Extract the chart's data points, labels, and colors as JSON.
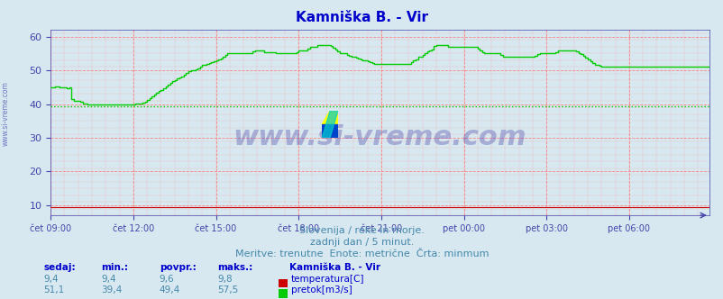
{
  "title": "Kamniška B. - Vir",
  "title_color": "#0000cc",
  "bg_color": "#d8e8f0",
  "plot_bg_color": "#d8e8f0",
  "grid_color": "#ff8080",
  "ylim": [
    7,
    62
  ],
  "yticks": [
    10,
    20,
    30,
    40,
    50,
    60
  ],
  "xlabel_color": "#4444aa",
  "tick_color": "#4444aa",
  "x_labels": [
    "čet 09:00",
    "čet 12:00",
    "čet 15:00",
    "čet 18:00",
    "čet 21:00",
    "pet 00:00",
    "pet 03:00",
    "pet 06:00"
  ],
  "x_positions": [
    0,
    36,
    72,
    108,
    144,
    180,
    216,
    252
  ],
  "total_points": 288,
  "temp_color": "#cc0000",
  "temp_value": 9.4,
  "flow_color": "#00cc00",
  "avg_flow": 39.4,
  "watermark": "www.si-vreme.com",
  "watermark_color": "#4444aa",
  "watermark_alpha": 0.35,
  "subtitle1": "Slovenija / reke in morje.",
  "subtitle2": "zadnji dan / 5 minut.",
  "subtitle3": "Meritve: trenutne  Enote: metrične  Črta: minmum",
  "footer_color": "#4488aa",
  "legend_title": "Kamniška B. - Vir",
  "stat_headers": [
    "sedaj:",
    "min.:",
    "povpr.:",
    "maks.:"
  ],
  "temp_stats": [
    "9,4",
    "9,4",
    "9,6",
    "9,8"
  ],
  "flow_stats": [
    "51,1",
    "39,4",
    "49,4",
    "57,5"
  ],
  "left_margin_label": "www.si-vreme.com",
  "flow_data": [
    45,
    45,
    45.2,
    45.1,
    45,
    44.9,
    45,
    44.8,
    45,
    41,
    41,
    41,
    41,
    40.5,
    40.2,
    40,
    40,
    39.8,
    40,
    40,
    39.9,
    40,
    40,
    40,
    40,
    40,
    40,
    40,
    40,
    40,
    40,
    40,
    40,
    40,
    40,
    40,
    40,
    40.1,
    40,
    40.2,
    40.5,
    41,
    41.5,
    42,
    42.5,
    43,
    43.5,
    44,
    44.5,
    45,
    45.5,
    46,
    46.5,
    47,
    47.5,
    48,
    48,
    48.5,
    49,
    49.5,
    50,
    50,
    50,
    50.5,
    51,
    51.5,
    51.5,
    52,
    52,
    52.5,
    52.5,
    53,
    53,
    53.5,
    54,
    54.5,
    55,
    55,
    55,
    55,
    55,
    55,
    55,
    55,
    55,
    55,
    55,
    55.5,
    56,
    56,
    56,
    56,
    55.5,
    55.5,
    55.5,
    55.5,
    55.5,
    55,
    55,
    55,
    55,
    55,
    55,
    55,
    55,
    55,
    55.5,
    56,
    56,
    56,
    56,
    56.5,
    57,
    57,
    57,
    57.5,
    57.5,
    57.5,
    57.5,
    57.5,
    57.5,
    57,
    56.5,
    56,
    55.5,
    55,
    55,
    55,
    54.5,
    54,
    54,
    54,
    53.5,
    53.5,
    53,
    53,
    53,
    52.5,
    52.5,
    52,
    52,
    52,
    52,
    52,
    52,
    52,
    52,
    52,
    52,
    52,
    52,
    52,
    52,
    52,
    52,
    52,
    53,
    53,
    54,
    54,
    54.5,
    55,
    55.5,
    56,
    56,
    57,
    57.5,
    57.5,
    57.5,
    57.5,
    57.5,
    57,
    57,
    57,
    57,
    57,
    57,
    57,
    57,
    57,
    57,
    57,
    57,
    57,
    56.5,
    56,
    55.5,
    55,
    55,
    55,
    55,
    55,
    55,
    55,
    54.5,
    54,
    54,
    54,
    54,
    54,
    54,
    54,
    54,
    54,
    54,
    54,
    54,
    54,
    54,
    54.5,
    55,
    55,
    55,
    55,
    55,
    55,
    55,
    55,
    55.5,
    56,
    56,
    56,
    56,
    56,
    56,
    56,
    56,
    55.5,
    55,
    54.5,
    54,
    53.5,
    53,
    52.5,
    52,
    51.5,
    51.5,
    51,
    51,
    51,
    51,
    51,
    51,
    51,
    51,
    51,
    51,
    51,
    51,
    51,
    51,
    51,
    51,
    51,
    51,
    51,
    51,
    51,
    51,
    51,
    51,
    51,
    51,
    51,
    51,
    51,
    51,
    51,
    51,
    51,
    51,
    51,
    51,
    51,
    51,
    51,
    51,
    51,
    51,
    51,
    51,
    51,
    51,
    51,
    51.1
  ]
}
